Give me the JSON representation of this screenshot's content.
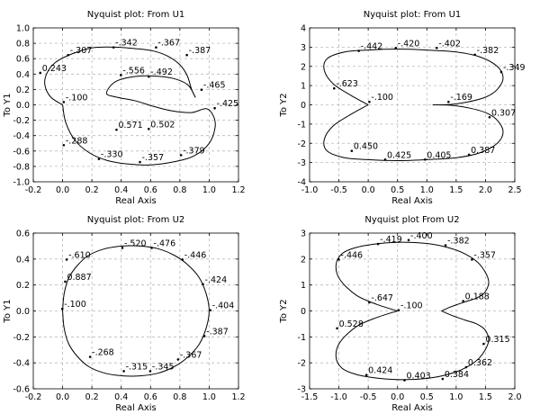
{
  "chart_data": [
    {
      "type": "line",
      "title": "Nyquist plot: From U1",
      "xlabel": "Real Axis",
      "ylabel": "To Y1",
      "xlim": [
        -0.2,
        1.2
      ],
      "ylim": [
        -1.0,
        1.0
      ],
      "xticks": [
        -0.2,
        0.0,
        0.2,
        0.4,
        0.6,
        0.8,
        1.0,
        1.2
      ],
      "yticks": [
        -1.0,
        -0.8,
        -0.6,
        -0.4,
        -0.2,
        0.0,
        0.2,
        0.4,
        0.6,
        0.8,
        1.0
      ],
      "grid": true,
      "series": [
        {
          "x": [
            0.0,
            -0.08,
            -0.12,
            -0.11,
            -0.05,
            0.06,
            0.2,
            0.35,
            0.5,
            0.62,
            0.72,
            0.8,
            0.85,
            0.88,
            0.905,
            0.86,
            0.78,
            0.66,
            0.5,
            0.36,
            0.3,
            0.37,
            0.5,
            0.62,
            0.75,
            0.88,
            0.98,
            1.03,
            1.04,
            1.0,
            0.9,
            0.76,
            0.6,
            0.45,
            0.3,
            0.18,
            0.08,
            0.02,
            0.0
          ],
          "y": [
            0.0,
            0.1,
            0.25,
            0.4,
            0.55,
            0.66,
            0.74,
            0.75,
            0.73,
            0.7,
            0.63,
            0.52,
            0.38,
            0.2,
            0.1,
            0.25,
            0.33,
            0.37,
            0.37,
            0.3,
            0.15,
            0.1,
            0.05,
            -0.02,
            -0.08,
            -0.1,
            -0.05,
            -0.15,
            -0.3,
            -0.5,
            -0.66,
            -0.74,
            -0.78,
            -0.77,
            -0.72,
            -0.62,
            -0.45,
            -0.22,
            0.0
          ]
        }
      ],
      "annotations": [
        {
          "text": "-.307",
          "x": 0.05,
          "y": 0.67
        },
        {
          "text": "-.342",
          "x": 0.36,
          "y": 0.77
        },
        {
          "text": "-.367",
          "x": 0.65,
          "y": 0.77
        },
        {
          "text": "-.387",
          "x": 0.86,
          "y": 0.67
        },
        {
          "text": "0.243",
          "x": -0.14,
          "y": 0.44
        },
        {
          "text": "-.556",
          "x": 0.41,
          "y": 0.41
        },
        {
          "text": "-.492",
          "x": 0.6,
          "y": 0.39
        },
        {
          "text": "-.465",
          "x": 0.96,
          "y": 0.22
        },
        {
          "text": "-.100",
          "x": 0.02,
          "y": 0.06
        },
        {
          "text": "-.425",
          "x": 1.05,
          "y": -0.02
        },
        {
          "text": "0.571",
          "x": 0.38,
          "y": -0.3
        },
        {
          "text": "0.502",
          "x": 0.6,
          "y": -0.29
        },
        {
          "text": "-.288",
          "x": 0.02,
          "y": -0.5
        },
        {
          "text": "-.330",
          "x": 0.26,
          "y": -0.68
        },
        {
          "text": "-.357",
          "x": 0.54,
          "y": -0.72
        },
        {
          "text": "-.379",
          "x": 0.82,
          "y": -0.63
        }
      ]
    },
    {
      "type": "line",
      "title": "Nyquist plot: From U1",
      "xlabel": "Real Axis",
      "ylabel": "To Y2",
      "xlim": [
        -1.0,
        2.5
      ],
      "ylim": [
        -4,
        4
      ],
      "xticks": [
        -1.0,
        -0.5,
        0.0,
        0.5,
        1.0,
        1.5,
        2.0,
        2.5
      ],
      "yticks": [
        -4,
        -3,
        -2,
        -1,
        0,
        1,
        2,
        3,
        4
      ],
      "grid": true,
      "series": [
        {
          "x": [
            0.0,
            -0.3,
            -0.6,
            -0.75,
            -0.7,
            -0.4,
            0.0,
            0.5,
            1.0,
            1.5,
            1.9,
            2.2,
            2.3,
            2.2,
            2.0,
            1.7,
            1.4,
            1.1
          ],
          "y": [
            0.0,
            0.5,
            1.1,
            1.8,
            2.4,
            2.75,
            2.85,
            2.9,
            2.85,
            2.75,
            2.5,
            2.0,
            1.4,
            0.8,
            0.4,
            0.15,
            0.02,
            0.0
          ]
        },
        {
          "x": [
            0.0,
            -0.3,
            -0.6,
            -0.75,
            -0.7,
            -0.4,
            0.0,
            0.5,
            1.0,
            1.5,
            1.9,
            2.2,
            2.3,
            2.2,
            2.0,
            1.7,
            1.4,
            1.1
          ],
          "y": [
            0.0,
            -0.5,
            -1.1,
            -1.8,
            -2.4,
            -2.75,
            -2.85,
            -2.9,
            -2.85,
            -2.75,
            -2.5,
            -2.0,
            -1.4,
            -0.8,
            -0.4,
            -0.15,
            -0.02,
            0.0
          ]
        }
      ],
      "annotations": [
        {
          "text": "-.442",
          "x": -0.13,
          "y": 2.9
        },
        {
          "text": "-.420",
          "x": 0.5,
          "y": 3.05
        },
        {
          "text": "-.402",
          "x": 1.2,
          "y": 3.05
        },
        {
          "text": "-.382",
          "x": 1.85,
          "y": 2.7
        },
        {
          "text": "-.349",
          "x": 2.3,
          "y": 1.8
        },
        {
          "text": "-.623",
          "x": -0.55,
          "y": 0.95
        },
        {
          "text": "-.100",
          "x": 0.05,
          "y": 0.25
        },
        {
          "text": "-.169",
          "x": 1.4,
          "y": 0.25
        },
        {
          "text": "0.307",
          "x": 2.1,
          "y": -0.55
        },
        {
          "text": "0.450",
          "x": -0.25,
          "y": -2.3
        },
        {
          "text": "0.425",
          "x": 0.32,
          "y": -2.75
        },
        {
          "text": "0.405",
          "x": 1.0,
          "y": -2.75
        },
        {
          "text": "0.387",
          "x": 1.75,
          "y": -2.5
        }
      ]
    },
    {
      "type": "line",
      "title": "Nyquist plot: From U2",
      "xlabel": "Real Axis",
      "ylabel": "To Y1",
      "xlim": [
        -0.2,
        1.2
      ],
      "ylim": [
        -0.6,
        0.6
      ],
      "xticks": [
        -0.2,
        0.0,
        0.2,
        0.4,
        0.6,
        0.8,
        1.0,
        1.2
      ],
      "yticks": [
        -0.6,
        -0.4,
        -0.2,
        0.0,
        0.2,
        0.4,
        0.6
      ],
      "grid": true,
      "series": [
        {
          "x": [
            0.0,
            0.01,
            0.04,
            0.1,
            0.18,
            0.29,
            0.41,
            0.53,
            0.65,
            0.76,
            0.85,
            0.93,
            0.98,
            1.0,
            0.98,
            0.93,
            0.85,
            0.76,
            0.65,
            0.53,
            0.41,
            0.29,
            0.18,
            0.1,
            0.04,
            0.01,
            0.0
          ],
          "y": [
            0.0,
            0.13,
            0.25,
            0.35,
            0.43,
            0.48,
            0.5,
            0.5,
            0.48,
            0.43,
            0.36,
            0.26,
            0.13,
            0.0,
            -0.13,
            -0.26,
            -0.36,
            -0.43,
            -0.48,
            -0.5,
            -0.5,
            -0.48,
            -0.43,
            -0.35,
            -0.25,
            -0.13,
            0.0
          ]
        }
      ],
      "annotations": [
        {
          "text": "-.520",
          "x": 0.42,
          "y": 0.5
        },
        {
          "text": "-.476",
          "x": 0.62,
          "y": 0.5
        },
        {
          "text": "-.610",
          "x": 0.04,
          "y": 0.41
        },
        {
          "text": "-.446",
          "x": 0.83,
          "y": 0.41
        },
        {
          "text": "0.887",
          "x": 0.03,
          "y": 0.24
        },
        {
          "text": "-.424",
          "x": 0.97,
          "y": 0.22
        },
        {
          "text": "-.100",
          "x": 0.01,
          "y": 0.03
        },
        {
          "text": "-.404",
          "x": 1.02,
          "y": 0.02
        },
        {
          "text": "-.387",
          "x": 0.98,
          "y": -0.18
        },
        {
          "text": "-.268",
          "x": 0.2,
          "y": -0.34
        },
        {
          "text": "-.367",
          "x": 0.8,
          "y": -0.36
        },
        {
          "text": "-.315",
          "x": 0.43,
          "y": -0.45
        },
        {
          "text": "-.345",
          "x": 0.61,
          "y": -0.45
        }
      ]
    },
    {
      "type": "line",
      "title": "Nyquist plot From U2",
      "xlabel": "Real Axis",
      "ylabel": "To Y2",
      "xlim": [
        -1.5,
        2.0
      ],
      "ylim": [
        -3,
        3
      ],
      "xticks": [
        -1.5,
        -1.0,
        -0.5,
        0.0,
        0.5,
        1.0,
        1.5,
        2.0
      ],
      "yticks": [
        -3,
        -2,
        -1,
        0,
        1,
        2,
        3
      ],
      "grid": true,
      "series": [
        {
          "x": [
            0.0,
            -0.35,
            -0.7,
            -0.98,
            -1.05,
            -0.95,
            -0.7,
            -0.3,
            0.1,
            0.5,
            0.85,
            1.15,
            1.4,
            1.55,
            1.5,
            1.35,
            1.15,
            0.9,
            0.75
          ],
          "y": [
            0.0,
            0.25,
            0.6,
            1.2,
            1.75,
            2.2,
            2.45,
            2.6,
            2.65,
            2.6,
            2.45,
            2.2,
            1.8,
            1.2,
            0.75,
            0.5,
            0.35,
            0.15,
            0.0
          ]
        },
        {
          "x": [
            0.0,
            -0.35,
            -0.7,
            -0.98,
            -1.05,
            -0.95,
            -0.7,
            -0.3,
            0.1,
            0.5,
            0.85,
            1.15,
            1.4,
            1.55,
            1.5,
            1.35,
            1.15,
            0.9,
            0.75
          ],
          "y": [
            0.0,
            -0.25,
            -0.6,
            -1.2,
            -1.75,
            -2.2,
            -2.45,
            -2.6,
            -2.65,
            -2.6,
            -2.45,
            -2.2,
            -1.8,
            -1.2,
            -0.75,
            -0.5,
            -0.35,
            -0.15,
            0.0
          ]
        }
      ],
      "annotations": [
        {
          "text": "-.419",
          "x": -0.3,
          "y": 2.65
        },
        {
          "text": "-.400",
          "x": 0.22,
          "y": 2.8
        },
        {
          "text": "-.382",
          "x": 0.85,
          "y": 2.6
        },
        {
          "text": "-.446",
          "x": -0.97,
          "y": 2.05
        },
        {
          "text": "-.357",
          "x": 1.3,
          "y": 2.05
        },
        {
          "text": "-.647",
          "x": -0.45,
          "y": 0.4
        },
        {
          "text": "-.100",
          "x": 0.05,
          "y": 0.1
        },
        {
          "text": "0.188",
          "x": 1.15,
          "y": 0.45
        },
        {
          "text": "0.528",
          "x": -1.0,
          "y": -0.6
        },
        {
          "text": "0.315",
          "x": 1.5,
          "y": -1.2
        },
        {
          "text": "0.362",
          "x": 1.2,
          "y": -2.1
        },
        {
          "text": "0.424",
          "x": -0.5,
          "y": -2.4
        },
        {
          "text": "0.403",
          "x": 0.15,
          "y": -2.6
        },
        {
          "text": "0.384",
          "x": 0.8,
          "y": -2.55
        }
      ]
    }
  ]
}
